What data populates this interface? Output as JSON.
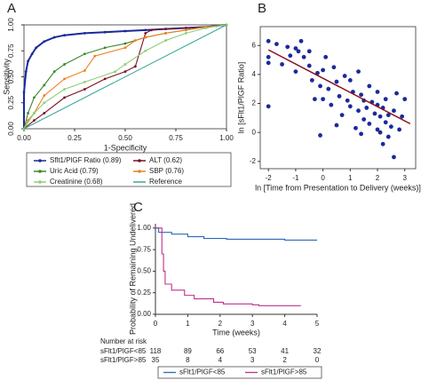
{
  "chart_data": [
    {
      "type": "line",
      "panel_label": "A",
      "xlabel": "1-Specificity",
      "ylabel": "Sensitivity",
      "xlim": [
        0,
        1
      ],
      "ylim": [
        0,
        1
      ],
      "xticks": [
        {
          "value": 0,
          "label": "0.00"
        },
        {
          "value": 0.25,
          "label": "0.25"
        },
        {
          "value": 0.5,
          "label": "0.50"
        },
        {
          "value": 0.75,
          "label": "0.75"
        },
        {
          "value": 1,
          "label": "1.00"
        }
      ],
      "yticks": [
        {
          "value": 0,
          "label": "0.00"
        },
        {
          "value": 0.25,
          "label": "0.25"
        },
        {
          "value": 0.5,
          "label": "0.50"
        },
        {
          "value": 0.75,
          "label": "0.75"
        },
        {
          "value": 1,
          "label": "1.00"
        }
      ],
      "series": [
        {
          "name": "Sflt1/PlGF Ratio (0.89)",
          "color": "#1a2a9a",
          "x": [
            0,
            0,
            0.01,
            0.02,
            0.04,
            0.06,
            0.1,
            0.15,
            0.2,
            0.3,
            0.4,
            0.5,
            0.6,
            0.7,
            0.8,
            0.9,
            0.95,
            1
          ],
          "values": [
            0,
            0.35,
            0.55,
            0.65,
            0.72,
            0.78,
            0.84,
            0.88,
            0.9,
            0.92,
            0.93,
            0.94,
            0.95,
            0.96,
            0.97,
            0.98,
            0.99,
            1
          ]
        },
        {
          "name": "ALT (0.62)",
          "color": "#7a1020",
          "x": [
            0,
            0.05,
            0.1,
            0.2,
            0.3,
            0.4,
            0.5,
            0.55,
            0.6,
            0.63,
            0.7,
            0.8,
            0.9,
            1
          ],
          "values": [
            0,
            0.08,
            0.15,
            0.3,
            0.38,
            0.48,
            0.55,
            0.6,
            0.92,
            0.95,
            0.96,
            0.97,
            0.98,
            1
          ]
        },
        {
          "name": "Uric Acid (0.79)",
          "color": "#3a8a2a",
          "x": [
            0,
            0.02,
            0.05,
            0.1,
            0.15,
            0.2,
            0.3,
            0.4,
            0.5,
            0.6,
            0.7,
            0.8,
            0.9,
            1
          ],
          "values": [
            0,
            0.15,
            0.3,
            0.42,
            0.55,
            0.62,
            0.72,
            0.78,
            0.82,
            0.88,
            0.92,
            0.95,
            0.98,
            1
          ]
        },
        {
          "name": "SBP (0.76)",
          "color": "#f08020",
          "x": [
            0,
            0.02,
            0.05,
            0.1,
            0.2,
            0.3,
            0.35,
            0.5,
            0.55,
            0.6,
            0.7,
            0.8,
            0.9,
            1
          ],
          "values": [
            0,
            0.08,
            0.15,
            0.32,
            0.48,
            0.56,
            0.7,
            0.78,
            0.85,
            0.88,
            0.92,
            0.95,
            0.98,
            1
          ]
        },
        {
          "name": "Creatinine (0.68)",
          "color": "#8ccf7a",
          "x": [
            0,
            0.05,
            0.1,
            0.2,
            0.3,
            0.45,
            0.5,
            0.6,
            0.7,
            0.8,
            0.9,
            1
          ],
          "values": [
            0,
            0.15,
            0.25,
            0.38,
            0.45,
            0.55,
            0.62,
            0.75,
            0.85,
            0.92,
            0.97,
            1
          ]
        },
        {
          "name": "Reference",
          "color": "#3aa89a",
          "x": [
            0,
            1
          ],
          "values": [
            0,
            1
          ]
        }
      ]
    },
    {
      "type": "scatter",
      "panel_label": "B",
      "xlabel": "ln [Time from Presentation to Delivery (weeks)]",
      "ylabel": "ln [sFlt1/PlGF Ratio]",
      "xlim": [
        -2.3,
        3.4
      ],
      "ylim": [
        -2.5,
        7.3
      ],
      "xticks": [
        -2,
        -1,
        0,
        1,
        2,
        3
      ],
      "yticks": [
        -2,
        0,
        2,
        4,
        6
      ],
      "points": {
        "color": "#1a2a9a",
        "x": [
          -2,
          -2,
          -2,
          -2,
          -1.7,
          -1.5,
          -1.3,
          -1.2,
          -1,
          -1,
          -0.9,
          -0.8,
          -0.7,
          -0.5,
          -0.5,
          -0.4,
          -0.2,
          -0.1,
          0,
          0,
          0.1,
          0.2,
          0.3,
          0.4,
          0.5,
          0.5,
          0.6,
          0.7,
          0.8,
          0.9,
          1,
          1,
          1.1,
          1.2,
          1.3,
          1.3,
          1.4,
          1.5,
          1.5,
          1.6,
          1.7,
          1.7,
          1.8,
          1.9,
          2,
          2,
          2,
          2.1,
          2.1,
          2.2,
          2.2,
          2.3,
          2.3,
          2.4,
          2.4,
          2.5,
          2.6,
          2.6,
          2.7,
          2.8,
          2.9,
          3,
          -0.1,
          -0.3,
          1.4
        ],
        "y": [
          1.8,
          5.2,
          6.3,
          4.8,
          6.1,
          4.7,
          5.9,
          5.3,
          5.8,
          4.2,
          5.6,
          6.3,
          5.2,
          5.6,
          4.6,
          3.6,
          4.1,
          3.2,
          4.3,
          2.3,
          5.2,
          3,
          1.9,
          4.5,
          3.5,
          0.5,
          2.5,
          1.2,
          3.9,
          2.2,
          3.6,
          1.8,
          2.8,
          0.3,
          4.2,
          1.5,
          2.6,
          0.9,
          2.2,
          1.7,
          3.2,
          0.6,
          2.1,
          1.3,
          0.2,
          1.9,
          2.8,
          1.1,
          0,
          1.7,
          -0.8,
          0.7,
          2.3,
          1.2,
          -0.3,
          0.4,
          1.5,
          -1.7,
          2.7,
          0.2,
          1.1,
          2.3,
          -0.2,
          2.3,
          -0.1
        ]
      },
      "fit_line": {
        "color": "#8a1020",
        "x": [
          -2,
          3.2
        ],
        "y": [
          5.7,
          0.6
        ]
      }
    },
    {
      "type": "step",
      "panel_label": "C",
      "xlabel": "Time (weeks)",
      "ylabel": "Probability of Remaining Undelivered",
      "xlim": [
        0,
        5
      ],
      "ylim": [
        0,
        1.05
      ],
      "xticks": [
        0,
        1,
        2,
        3,
        4,
        5
      ],
      "yticks": [
        {
          "value": 0,
          "label": "0.00"
        },
        {
          "value": 0.25,
          "label": "0.25"
        },
        {
          "value": 0.5,
          "label": "0.50"
        },
        {
          "value": 0.75,
          "label": "0.75"
        },
        {
          "value": 1,
          "label": "1.00"
        }
      ],
      "series": [
        {
          "name": "sFlt1/PlGF<85",
          "color": "#2a6ab8",
          "x": [
            0,
            0.1,
            0.5,
            1,
            1.5,
            2.2,
            4,
            5
          ],
          "values": [
            1,
            0.95,
            0.93,
            0.9,
            0.88,
            0.87,
            0.86,
            0.86
          ]
        },
        {
          "name": "sFlt1/PlGF>85",
          "color": "#c0308a",
          "x": [
            0,
            0.2,
            0.25,
            0.3,
            0.5,
            0.9,
            1.2,
            1.8,
            2.1,
            3,
            3.2,
            4.5
          ],
          "values": [
            1,
            0.7,
            0.5,
            0.35,
            0.28,
            0.22,
            0.18,
            0.14,
            0.12,
            0.11,
            0.1,
            0.1
          ]
        }
      ],
      "risk_table": {
        "title": "Number at risk",
        "rows": [
          {
            "name": "sFlt1/PlGF<85",
            "values": [
              118,
              89,
              66,
              53,
              41,
              32
            ]
          },
          {
            "name": "sFlt1/PlGF>85",
            "values": [
              35,
              8,
              4,
              3,
              2,
              0
            ]
          }
        ]
      }
    }
  ]
}
